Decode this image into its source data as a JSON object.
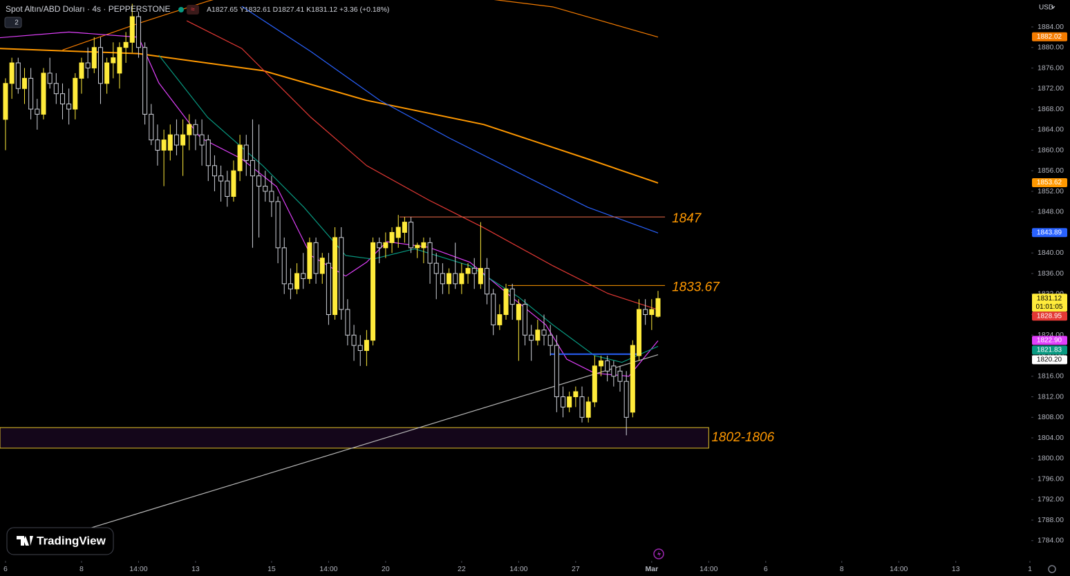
{
  "chart_data": {
    "type": "candlestick",
    "title": "Spot Altın/ABD Doları · 4s · PEPPERSTONE",
    "ohlc_labels": [
      "A",
      "Y",
      "D",
      "K"
    ],
    "change": "+3.36 (+0.18%)",
    "interval_count": "2",
    "currency": "USD",
    "countdown": "01:01:05",
    "watermark": "TradingView",
    "bull_color": "#ffeb3b",
    "bear_color": "#d1d4dc",
    "xlim": [
      -0.87,
      161.7
    ],
    "ylim": [
      1780.07,
      1889.24
    ],
    "xticks": [
      {
        "value": 0,
        "label": "6"
      },
      {
        "value": 12,
        "label": "8"
      },
      {
        "value": 21,
        "label": "14:00"
      },
      {
        "value": 30,
        "label": "13"
      },
      {
        "value": 42,
        "label": "15"
      },
      {
        "value": 51,
        "label": "14:00"
      },
      {
        "value": 60,
        "label": "20"
      },
      {
        "value": 72,
        "label": "22"
      },
      {
        "value": 81,
        "label": "14:00"
      },
      {
        "value": 90,
        "label": "27"
      },
      {
        "value": 102,
        "label": "Mar"
      },
      {
        "value": 111,
        "label": "14:00"
      },
      {
        "value": 120,
        "label": "6"
      },
      {
        "value": 132,
        "label": "8"
      },
      {
        "value": 141,
        "label": "14:00"
      },
      {
        "value": 150,
        "label": "13"
      },
      {
        "value": 161.7,
        "label": "1"
      }
    ],
    "yticks": [
      {
        "value": 1784,
        "label": "1784.00"
      },
      {
        "value": 1788,
        "label": "1788.00"
      },
      {
        "value": 1792,
        "label": "1792.00"
      },
      {
        "value": 1796,
        "label": "1796.00"
      },
      {
        "value": 1800,
        "label": "1800.00"
      },
      {
        "value": 1804,
        "label": "1804.00"
      },
      {
        "value": 1808,
        "label": "1808.00"
      },
      {
        "value": 1812,
        "label": "1812.00"
      },
      {
        "value": 1816,
        "label": "1816.00"
      },
      {
        "value": 1820,
        "label": "1820.00"
      },
      {
        "value": 1824,
        "label": "1824.00"
      },
      {
        "value": 1828,
        "label": "1828.00"
      },
      {
        "value": 1832,
        "label": "1832.00"
      },
      {
        "value": 1836,
        "label": "1836.00"
      },
      {
        "value": 1840,
        "label": "1840.00"
      },
      {
        "value": 1844,
        "label": "1844.00"
      },
      {
        "value": 1848,
        "label": "1848.00"
      },
      {
        "value": 1852,
        "label": "1852.00"
      },
      {
        "value": 1856,
        "label": "1856.00"
      },
      {
        "value": 1860,
        "label": "1860.00"
      },
      {
        "value": 1864,
        "label": "1864.00"
      },
      {
        "value": 1868,
        "label": "1868.00"
      },
      {
        "value": 1872,
        "label": "1872.00"
      },
      {
        "value": 1876,
        "label": "1876.00"
      },
      {
        "value": 1880,
        "label": "1880.00"
      },
      {
        "value": 1884,
        "label": "1884.00"
      }
    ],
    "candles": [
      [
        1866,
        1874,
        1860,
        1873
      ],
      [
        1873,
        1878,
        1870,
        1877
      ],
      [
        1877,
        1878,
        1871,
        1872
      ],
      [
        1872,
        1876,
        1869,
        1874
      ],
      [
        1874,
        1876,
        1866,
        1868
      ],
      [
        1868,
        1870,
        1864,
        1867
      ],
      [
        1867,
        1876,
        1866,
        1875
      ],
      [
        1875,
        1878,
        1872,
        1873
      ],
      [
        1873,
        1875,
        1869,
        1871
      ],
      [
        1871,
        1873,
        1866,
        1869
      ],
      [
        1869,
        1872,
        1865,
        1868
      ],
      [
        1868,
        1875,
        1866,
        1874
      ],
      [
        1874,
        1878,
        1871,
        1877
      ],
      [
        1877,
        1880,
        1874,
        1876
      ],
      [
        1876,
        1882,
        1875,
        1880
      ],
      [
        1880,
        1882,
        1869,
        1873
      ],
      [
        1873,
        1878,
        1871,
        1877
      ],
      [
        1877,
        1881,
        1874,
        1878
      ],
      [
        1875,
        1881,
        1872,
        1880
      ],
      [
        1880,
        1883,
        1877,
        1881
      ],
      [
        1881,
        1888.5,
        1879,
        1886
      ],
      [
        1886,
        1887,
        1878,
        1880
      ],
      [
        1880,
        1881,
        1865,
        1867
      ],
      [
        1867,
        1869,
        1861,
        1862
      ],
      [
        1862,
        1865,
        1857,
        1860
      ],
      [
        1860,
        1864,
        1853,
        1862
      ],
      [
        1860,
        1865,
        1858,
        1863
      ],
      [
        1863,
        1866,
        1859,
        1861
      ],
      [
        1861,
        1866,
        1855,
        1863
      ],
      [
        1863,
        1867,
        1860,
        1865
      ],
      [
        1865,
        1866,
        1860,
        1863
      ],
      [
        1863,
        1866,
        1857,
        1861
      ],
      [
        1862,
        1863,
        1854,
        1857
      ],
      [
        1857,
        1859,
        1852,
        1855
      ],
      [
        1855,
        1857,
        1850,
        1854
      ],
      [
        1854,
        1856,
        1849,
        1851
      ],
      [
        1851,
        1858,
        1850,
        1856
      ],
      [
        1856,
        1863,
        1854,
        1861
      ],
      [
        1861,
        1863,
        1855,
        1858
      ],
      [
        1858,
        1866,
        1841,
        1855
      ],
      [
        1855,
        1865,
        1843,
        1853
      ],
      [
        1853,
        1856,
        1850,
        1852
      ],
      [
        1852,
        1855,
        1847,
        1850
      ],
      [
        1850,
        1851,
        1838,
        1841
      ],
      [
        1841,
        1843,
        1832,
        1834
      ],
      [
        1834,
        1837,
        1831,
        1833
      ],
      [
        1833,
        1838,
        1832,
        1836
      ],
      [
        1836,
        1840,
        1833,
        1835
      ],
      [
        1835,
        1843,
        1834,
        1842
      ],
      [
        1842,
        1843,
        1834,
        1836
      ],
      [
        1836,
        1840,
        1834,
        1839
      ],
      [
        1838,
        1840,
        1826,
        1828
      ],
      [
        1828,
        1845,
        1827,
        1843
      ],
      [
        1843,
        1845,
        1827,
        1829
      ],
      [
        1829,
        1831,
        1822,
        1824
      ],
      [
        1824,
        1826,
        1819,
        1822
      ],
      [
        1822,
        1824,
        1818,
        1821
      ],
      [
        1821,
        1825,
        1818,
        1823
      ],
      [
        1823,
        1843,
        1822,
        1842
      ],
      [
        1842,
        1843,
        1838,
        1841
      ],
      [
        1841,
        1844,
        1839,
        1842
      ],
      [
        1842,
        1845,
        1840,
        1844
      ],
      [
        1843,
        1847.4,
        1841,
        1845
      ],
      [
        1844,
        1847,
        1842,
        1846
      ],
      [
        1846,
        1847,
        1840,
        1841
      ],
      [
        1841,
        1842,
        1839,
        1841.5
      ],
      [
        1841,
        1843,
        1838,
        1842
      ],
      [
        1842,
        1843,
        1834,
        1838
      ],
      [
        1838,
        1840,
        1831,
        1836
      ],
      [
        1836,
        1838,
        1832,
        1834
      ],
      [
        1834,
        1837,
        1832,
        1836
      ],
      [
        1836,
        1842,
        1833,
        1834
      ],
      [
        1834,
        1838,
        1832,
        1836
      ],
      [
        1836,
        1838,
        1834,
        1837
      ],
      [
        1837,
        1839,
        1833,
        1836
      ],
      [
        1834,
        1846,
        1833,
        1837
      ],
      [
        1837,
        1839,
        1830,
        1832
      ],
      [
        1832,
        1833,
        1824,
        1826
      ],
      [
        1826,
        1830,
        1825,
        1828
      ],
      [
        1828,
        1834,
        1827,
        1833
      ],
      [
        1833,
        1834,
        1827,
        1830
      ],
      [
        1827,
        1831,
        1819,
        1830
      ],
      [
        1830,
        1831,
        1822,
        1824
      ],
      [
        1824,
        1826,
        1819,
        1823
      ],
      [
        1823,
        1827,
        1822,
        1825
      ],
      [
        1825,
        1828,
        1822,
        1824
      ],
      [
        1824,
        1826,
        1820,
        1822
      ],
      [
        1822,
        1824,
        1809,
        1812
      ],
      [
        1812,
        1814,
        1808,
        1810
      ],
      [
        1810,
        1813,
        1809,
        1812
      ],
      [
        1812,
        1814,
        1810,
        1813
      ],
      [
        1812,
        1814,
        1807,
        1808
      ],
      [
        1808,
        1812,
        1807,
        1811
      ],
      [
        1811,
        1820,
        1810,
        1818
      ],
      [
        1818,
        1820,
        1816,
        1819
      ],
      [
        1819,
        1820,
        1815,
        1817
      ],
      [
        1818,
        1819,
        1814,
        1816
      ],
      [
        1817,
        1818,
        1813,
        1815
      ],
      [
        1815,
        1817,
        1804.5,
        1808
      ],
      [
        1809,
        1823,
        1808,
        1822
      ],
      [
        1820,
        1831,
        1819,
        1829
      ],
      [
        1829,
        1831,
        1826,
        1828
      ],
      [
        1828,
        1831,
        1825,
        1829
      ],
      [
        1827.65,
        1832.61,
        1827.41,
        1831.12
      ]
    ],
    "lines": [
      {
        "color": "#f57c00",
        "width": 1.2,
        "x": [
          9.0,
          21.0,
          31.9,
          48.2,
          73.3,
          86.4,
          103
        ],
        "values": [
          1879.5,
          1884.7,
          1889,
          1894.6,
          1889.9,
          1887.9,
          1882.02
        ],
        "badge": {
          "value": 1882.02,
          "label": "1882.02"
        }
      },
      {
        "color": "#ff9800",
        "width": 2,
        "x": [
          -0.9,
          21.0,
          40.6,
          57.0,
          75.5,
          91.9,
          103
        ],
        "values": [
          1879.8,
          1878.8,
          1875.5,
          1869.7,
          1865.0,
          1858.3,
          1853.62
        ],
        "badge": {
          "value": 1853.62,
          "label": "1853.62"
        }
      },
      {
        "color": "#2962ff",
        "width": 1.2,
        "x": [
          37.3,
          48.2,
          59.1,
          70.0,
          81.0,
          91.9,
          103
        ],
        "values": [
          1888,
          1879.2,
          1869.7,
          1862.4,
          1855.6,
          1848.9,
          1843.89
        ],
        "badge": {
          "value": 1843.89,
          "label": "1843.89"
        }
      },
      {
        "color": "#e53935",
        "width": 1.2,
        "x": [
          28.6,
          37.3,
          48.2,
          57.0,
          66.8,
          75.5,
          86.4,
          95.1,
          103
        ],
        "values": [
          1885.2,
          1879.8,
          1866.4,
          1857.0,
          1850.3,
          1844.9,
          1837.5,
          1832.1,
          1828.95
        ],
        "badge": {
          "value": 1828.95,
          "label": "1828.95"
        }
      },
      {
        "color": "#e040fb",
        "width": 1.2,
        "x": [
          -0.9,
          10.0,
          21.0,
          24.2,
          30.8,
          37.3,
          42.8,
          48.2,
          53.7,
          57.0,
          60.2,
          66.8,
          73.3,
          79.9,
          85.3,
          88.6,
          93.0,
          98.4,
          103
        ],
        "values": [
          1881.9,
          1883,
          1882,
          1873.1,
          1862.4,
          1858.3,
          1852.9,
          1839.5,
          1835.5,
          1838.2,
          1842.2,
          1841.1,
          1838.2,
          1831.4,
          1826.0,
          1819.3,
          1816.6,
          1816.0,
          1822.9
        ],
        "badge": {
          "value": 1822.9,
          "label": "1822.90"
        }
      },
      {
        "color": "#089981",
        "width": 1.2,
        "x": [
          24.2,
          31.9,
          40.6,
          47.1,
          53.7,
          58.0,
          64.6,
          73.3,
          81.0,
          86.4,
          93.0,
          97.3,
          103
        ],
        "values": [
          1878.5,
          1866.4,
          1857.0,
          1848.9,
          1839.5,
          1838.8,
          1840.8,
          1837.5,
          1831.4,
          1826.0,
          1820.0,
          1818.7,
          1821.83
        ],
        "badge": {
          "value": 1821.83,
          "label": "1821.83"
        }
      },
      {
        "color": "#b8b8b8",
        "width": 1.2,
        "x": [
          12.2,
          103
        ],
        "values": [
          1786.0,
          1820.2
        ],
        "badge": {
          "value": 1820.2,
          "label": "1820.20"
        }
      }
    ],
    "levels": [
      {
        "value": 1847,
        "x_start": 62.2,
        "x_end": 104.1,
        "color": "#ef6c4a",
        "labeled": true
      },
      {
        "value": 1833.67,
        "x_start": 79.3,
        "x_end": 104.1,
        "color": "#ff9800",
        "labeled": true
      },
      {
        "value": 1820.3,
        "x_start": 86,
        "x_end": 100,
        "color": "#2962ff",
        "labeled": false
      }
    ],
    "zone": {
      "low": 1802,
      "high": 1806,
      "x_start": -0.87,
      "x_end": 111,
      "label": "1802-1806"
    }
  }
}
